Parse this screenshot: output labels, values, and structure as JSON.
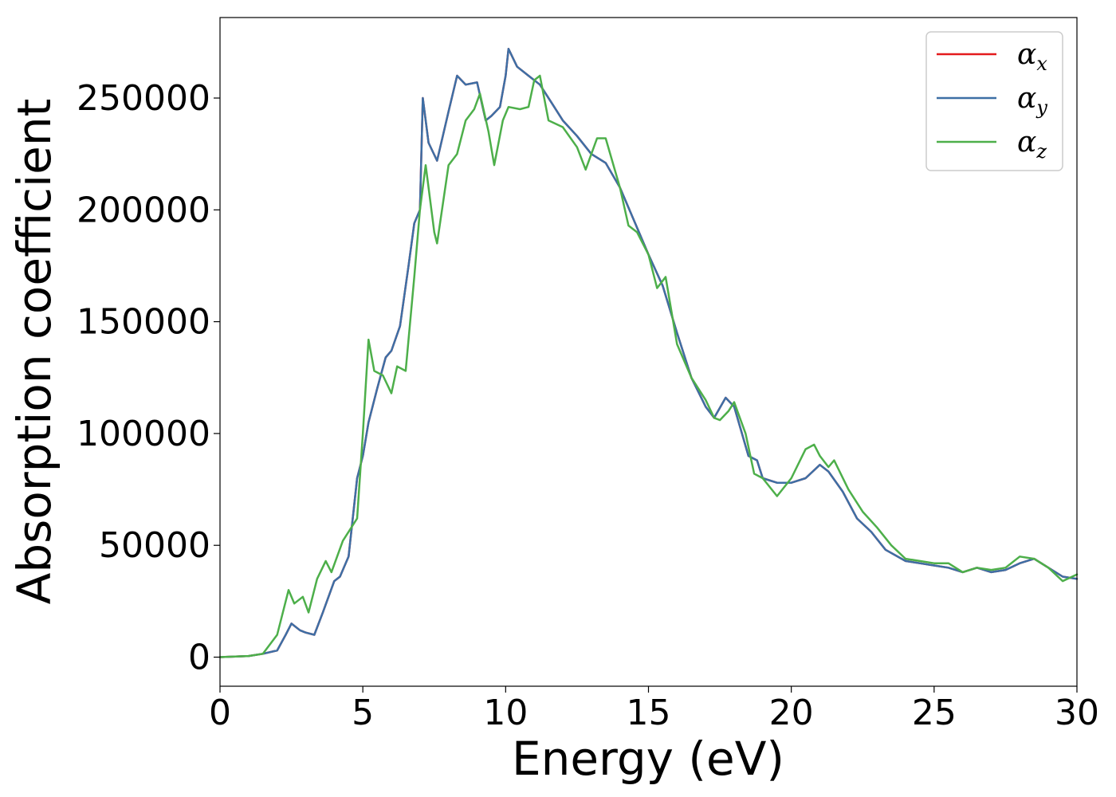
{
  "chart_data": {
    "type": "line",
    "title": "",
    "xlabel": "Energy (eV)",
    "ylabel": "Absorption coefficient",
    "xlim": [
      0,
      30
    ],
    "ylim": [
      -13000,
      286000
    ],
    "x_ticks": [
      0,
      5,
      10,
      15,
      20,
      25,
      30
    ],
    "y_ticks": [
      0,
      50000,
      100000,
      150000,
      200000,
      250000
    ],
    "grid": false,
    "legend_position": "top-right",
    "series": [
      {
        "name": "x",
        "legend_symbol": "α",
        "legend_subscript": "x",
        "color": "#e41a1c",
        "note_identical_to": "y",
        "x": [
          0,
          1,
          1.5,
          2,
          2.3,
          2.5,
          2.8,
          3,
          3.3,
          3.6,
          4,
          4.2,
          4.5,
          4.8,
          5,
          5.2,
          5.5,
          5.8,
          6,
          6.3,
          6.6,
          6.8,
          7,
          7.1,
          7.3,
          7.6,
          8,
          8.3,
          8.6,
          9,
          9.3,
          9.5,
          9.8,
          10,
          10.1,
          10.4,
          10.8,
          11.2,
          11.6,
          12,
          12.5,
          13,
          13.5,
          14,
          14.5,
          15,
          15.5,
          16,
          16.5,
          17,
          17.3,
          17.7,
          18,
          18.5,
          18.8,
          19,
          19.5,
          20,
          20.5,
          21,
          21.3,
          21.8,
          22.3,
          22.8,
          23.3,
          24,
          24.5,
          25,
          25.5,
          26,
          26.5,
          27,
          27.5,
          28,
          28.5,
          29,
          29.5,
          30
        ],
        "y": [
          0,
          500,
          1500,
          3000,
          10000,
          15000,
          12000,
          11000,
          10000,
          20000,
          34000,
          36000,
          45000,
          80000,
          90000,
          105000,
          120000,
          134000,
          137000,
          148000,
          175000,
          194000,
          200000,
          250000,
          230000,
          222000,
          244000,
          260000,
          256000,
          257000,
          240000,
          242000,
          246000,
          260000,
          272000,
          264000,
          260000,
          256000,
          248000,
          240000,
          233000,
          225000,
          221000,
          210000,
          195000,
          180000,
          166000,
          145000,
          125000,
          112000,
          107000,
          116000,
          112000,
          90000,
          88000,
          80000,
          78000,
          78000,
          80000,
          86000,
          83000,
          74000,
          62000,
          56000,
          48000,
          43000,
          42000,
          41000,
          40000,
          38000,
          40000,
          38000,
          39000,
          42000,
          44000,
          40000,
          36000,
          35000
        ]
      },
      {
        "name": "y",
        "legend_symbol": "α",
        "legend_subscript": "y",
        "color": "#3d6fa5",
        "x": [
          0,
          1,
          1.5,
          2,
          2.3,
          2.5,
          2.8,
          3,
          3.3,
          3.6,
          4,
          4.2,
          4.5,
          4.8,
          5,
          5.2,
          5.5,
          5.8,
          6,
          6.3,
          6.6,
          6.8,
          7,
          7.1,
          7.3,
          7.6,
          8,
          8.3,
          8.6,
          9,
          9.3,
          9.5,
          9.8,
          10,
          10.1,
          10.4,
          10.8,
          11.2,
          11.6,
          12,
          12.5,
          13,
          13.5,
          14,
          14.5,
          15,
          15.5,
          16,
          16.5,
          17,
          17.3,
          17.7,
          18,
          18.5,
          18.8,
          19,
          19.5,
          20,
          20.5,
          21,
          21.3,
          21.8,
          22.3,
          22.8,
          23.3,
          24,
          24.5,
          25,
          25.5,
          26,
          26.5,
          27,
          27.5,
          28,
          28.5,
          29,
          29.5,
          30
        ],
        "y": [
          0,
          500,
          1500,
          3000,
          10000,
          15000,
          12000,
          11000,
          10000,
          20000,
          34000,
          36000,
          45000,
          80000,
          90000,
          105000,
          120000,
          134000,
          137000,
          148000,
          175000,
          194000,
          200000,
          250000,
          230000,
          222000,
          244000,
          260000,
          256000,
          257000,
          240000,
          242000,
          246000,
          260000,
          272000,
          264000,
          260000,
          256000,
          248000,
          240000,
          233000,
          225000,
          221000,
          210000,
          195000,
          180000,
          166000,
          145000,
          125000,
          112000,
          107000,
          116000,
          112000,
          90000,
          88000,
          80000,
          78000,
          78000,
          80000,
          86000,
          83000,
          74000,
          62000,
          56000,
          48000,
          43000,
          42000,
          41000,
          40000,
          38000,
          40000,
          38000,
          39000,
          42000,
          44000,
          40000,
          36000,
          35000
        ]
      },
      {
        "name": "z",
        "legend_symbol": "α",
        "legend_subscript": "z",
        "color": "#4daf4a",
        "x": [
          0,
          1,
          1.5,
          2,
          2.4,
          2.6,
          2.9,
          3.1,
          3.4,
          3.7,
          3.9,
          4.3,
          4.8,
          5,
          5.2,
          5.4,
          5.7,
          6,
          6.2,
          6.5,
          6.8,
          7,
          7.2,
          7.5,
          7.6,
          8,
          8.3,
          8.6,
          8.9,
          9.1,
          9.4,
          9.6,
          9.9,
          10.1,
          10.5,
          10.8,
          11,
          11.2,
          11.5,
          12,
          12.5,
          12.8,
          13.2,
          13.5,
          14,
          14.3,
          14.6,
          15,
          15.3,
          15.6,
          16,
          16.5,
          17,
          17.3,
          17.5,
          17.8,
          18,
          18.4,
          18.7,
          19,
          19.5,
          20,
          20.5,
          20.8,
          21,
          21.3,
          21.5,
          22,
          22.5,
          23,
          23.5,
          24,
          24.5,
          25,
          25.5,
          26,
          26.5,
          27,
          27.5,
          28,
          28.5,
          29,
          29.5,
          30
        ],
        "y": [
          0,
          500,
          1500,
          10000,
          30000,
          24000,
          27000,
          20000,
          35000,
          43000,
          38000,
          52000,
          62000,
          100000,
          142000,
          128000,
          126000,
          118000,
          130000,
          128000,
          170000,
          200000,
          220000,
          190000,
          185000,
          220000,
          225000,
          240000,
          245000,
          252000,
          235000,
          220000,
          240000,
          246000,
          245000,
          246000,
          258000,
          260000,
          240000,
          237000,
          228000,
          218000,
          232000,
          232000,
          210000,
          193000,
          190000,
          180000,
          165000,
          170000,
          140000,
          125000,
          115000,
          107000,
          106000,
          110000,
          114000,
          100000,
          82000,
          80000,
          72000,
          80000,
          93000,
          95000,
          90000,
          85000,
          88000,
          75000,
          65000,
          58000,
          50000,
          44000,
          43000,
          42000,
          42000,
          38000,
          40000,
          39000,
          40000,
          45000,
          44000,
          40000,
          34000,
          37000
        ]
      }
    ]
  }
}
